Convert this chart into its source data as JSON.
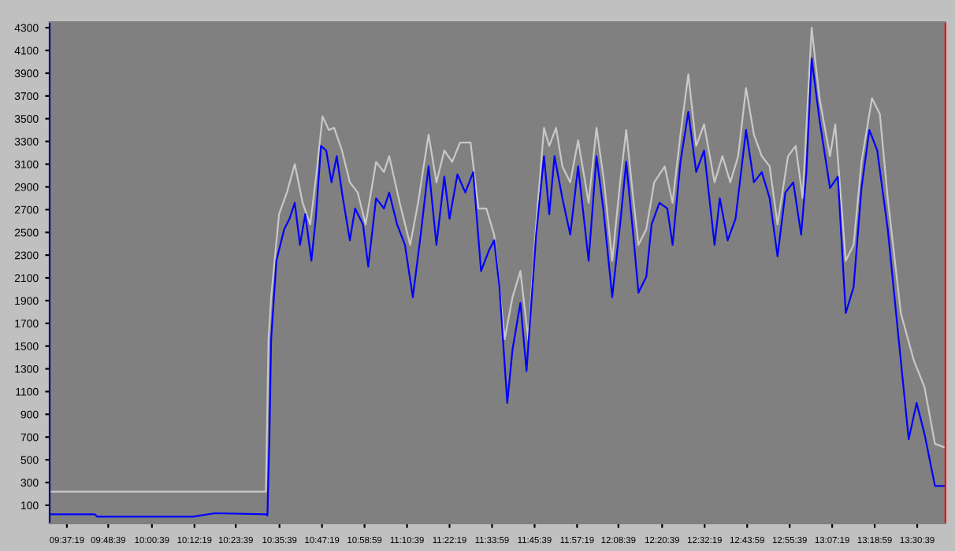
{
  "chart_data": {
    "type": "line",
    "xlim": [
      9.543,
      13.64
    ],
    "xticks": [
      {
        "value": 9.6219,
        "label": "09:37:19"
      },
      {
        "value": 9.8108,
        "label": "09:48:39"
      },
      {
        "value": 10.0108,
        "label": "10:00:39"
      },
      {
        "value": 10.2053,
        "label": "10:12:19"
      },
      {
        "value": 10.3942,
        "label": "10:23:39"
      },
      {
        "value": 10.5942,
        "label": "10:35:39"
      },
      {
        "value": 10.7886,
        "label": "10:47:19"
      },
      {
        "value": 10.9831,
        "label": "10:58:59"
      },
      {
        "value": 11.1775,
        "label": "11:10:39"
      },
      {
        "value": 11.3719,
        "label": "11:22:19"
      },
      {
        "value": 11.5664,
        "label": "11:33:59"
      },
      {
        "value": 11.7608,
        "label": "11:45:39"
      },
      {
        "value": 11.9553,
        "label": "11:57:19"
      },
      {
        "value": 12.1442,
        "label": "12:08:39"
      },
      {
        "value": 12.3442,
        "label": "12:20:39"
      },
      {
        "value": 12.5386,
        "label": "12:32:19"
      },
      {
        "value": 12.7331,
        "label": "12:43:59"
      },
      {
        "value": 12.9275,
        "label": "12:55:39"
      },
      {
        "value": 13.1219,
        "label": "13:07:19"
      },
      {
        "value": 13.3164,
        "label": "13:18:59"
      },
      {
        "value": 13.5108,
        "label": "13:30:39"
      }
    ],
    "ylim": [
      -60,
      4350
    ],
    "yticks": [
      100,
      300,
      500,
      700,
      900,
      1100,
      1300,
      1500,
      1700,
      1900,
      2100,
      2300,
      2500,
      2700,
      2900,
      3100,
      3300,
      3500,
      3700,
      3900,
      4100,
      4300
    ],
    "grid": false,
    "legend": false,
    "marker": "none",
    "line_style": "solid",
    "series": [
      {
        "color": "#c8c8c8",
        "x": [
          9.543,
          10.532,
          10.544,
          10.556,
          10.592,
          10.628,
          10.664,
          10.7,
          10.735,
          10.764,
          10.791,
          10.82,
          10.844,
          10.88,
          10.916,
          10.952,
          10.988,
          11.036,
          11.072,
          11.096,
          11.144,
          11.192,
          11.228,
          11.276,
          11.312,
          11.348,
          11.384,
          11.42,
          11.468,
          11.504,
          11.54,
          11.576,
          11.624,
          11.66,
          11.696,
          11.732,
          11.768,
          11.804,
          11.828,
          11.859,
          11.888,
          11.924,
          11.96,
          12.008,
          12.044,
          12.079,
          12.116,
          12.152,
          12.18,
          12.212,
          12.236,
          12.272,
          12.308,
          12.356,
          12.392,
          12.428,
          12.464,
          12.5,
          12.536,
          12.584,
          12.62,
          12.656,
          12.692,
          12.728,
          12.764,
          12.8,
          12.836,
          12.872,
          12.92,
          12.955,
          12.987,
          13.028,
          13.064,
          13.112,
          13.136,
          13.184,
          13.22,
          13.256,
          13.304,
          13.34,
          13.376,
          13.436,
          13.496,
          13.544,
          13.592,
          13.635
        ],
        "values": [
          220,
          220,
          1560,
          1930,
          2660,
          2850,
          3100,
          2760,
          2570,
          3030,
          3520,
          3400,
          3420,
          3220,
          2940,
          2850,
          2570,
          3120,
          3030,
          3170,
          2760,
          2390,
          2760,
          3360,
          2940,
          3220,
          3120,
          3290,
          3290,
          2710,
          2710,
          2480,
          1560,
          1930,
          2160,
          1560,
          2570,
          3420,
          3260,
          3420,
          3080,
          2940,
          3310,
          2760,
          3420,
          2940,
          2250,
          2940,
          3400,
          2800,
          2390,
          2530,
          2940,
          3080,
          2760,
          3360,
          3890,
          3260,
          3450,
          2940,
          3170,
          2940,
          3170,
          3770,
          3360,
          3170,
          3080,
          2570,
          3170,
          3260,
          2800,
          4300,
          3680,
          3170,
          3450,
          2250,
          2390,
          3120,
          3680,
          3540,
          2800,
          1790,
          1370,
          1140,
          640,
          610
        ]
      },
      {
        "color": "#0000ff",
        "x": [
          9.543,
          9.75,
          9.76,
          10.2,
          10.3,
          10.532,
          10.539,
          10.548,
          10.556,
          10.58,
          10.616,
          10.64,
          10.664,
          10.688,
          10.712,
          10.74,
          10.76,
          10.784,
          10.808,
          10.832,
          10.856,
          10.88,
          10.916,
          10.94,
          10.976,
          11.0,
          11.036,
          11.072,
          11.096,
          11.132,
          11.168,
          11.204,
          11.24,
          11.276,
          11.312,
          11.348,
          11.372,
          11.408,
          11.444,
          11.48,
          11.516,
          11.552,
          11.576,
          11.6,
          11.636,
          11.66,
          11.696,
          11.724,
          11.768,
          11.804,
          11.828,
          11.852,
          11.888,
          11.924,
          11.96,
          12.008,
          12.044,
          12.075,
          12.116,
          12.152,
          12.18,
          12.212,
          12.236,
          12.272,
          12.296,
          12.332,
          12.368,
          12.392,
          12.428,
          12.464,
          12.5,
          12.536,
          12.584,
          12.608,
          12.644,
          12.68,
          12.728,
          12.764,
          12.8,
          12.836,
          12.872,
          12.908,
          12.944,
          12.98,
          13.004,
          13.028,
          13.064,
          13.112,
          13.148,
          13.184,
          13.22,
          13.256,
          13.292,
          13.328,
          13.376,
          13.424,
          13.472,
          13.508,
          13.544,
          13.592,
          13.635
        ],
        "values": [
          20,
          20,
          0,
          0,
          30,
          20,
          10,
          680,
          1560,
          2250,
          2530,
          2620,
          2760,
          2390,
          2660,
          2250,
          2620,
          3260,
          3220,
          2940,
          3170,
          2850,
          2430,
          2710,
          2570,
          2200,
          2800,
          2710,
          2850,
          2570,
          2390,
          1930,
          2480,
          3080,
          2390,
          2990,
          2620,
          3010,
          2850,
          3030,
          2160,
          2340,
          2430,
          2020,
          1000,
          1470,
          1880,
          1280,
          2480,
          3170,
          2660,
          3170,
          2800,
          2480,
          3080,
          2250,
          3170,
          2710,
          1930,
          2570,
          3120,
          2480,
          1970,
          2110,
          2570,
          2760,
          2710,
          2390,
          3120,
          3560,
          3030,
          3220,
          2390,
          2800,
          2430,
          2620,
          3400,
          2940,
          3030,
          2800,
          2290,
          2850,
          2940,
          2480,
          3030,
          4030,
          3490,
          2890,
          2990,
          1790,
          2020,
          2890,
          3400,
          3220,
          2530,
          1600,
          680,
          1000,
          730,
          270,
          270
        ]
      }
    ]
  }
}
